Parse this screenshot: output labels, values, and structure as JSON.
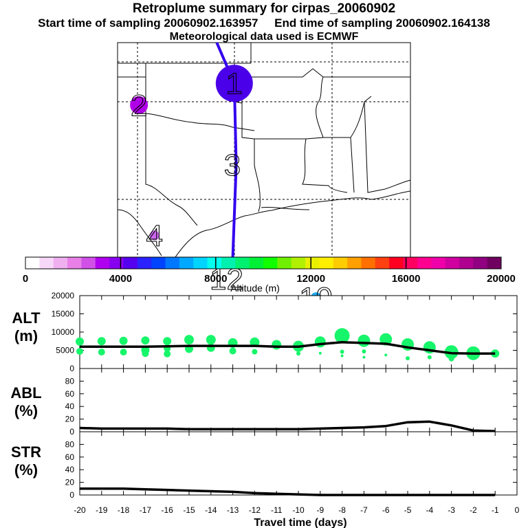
{
  "header": {
    "title": "Retroplume summary for cirpas_20060902",
    "start_sampling": "Start time of sampling 20060902.163957",
    "end_sampling": "End time of sampling 20060902.164138",
    "met_data": "Meteorological data used is ECMWF"
  },
  "map": {
    "plume_color": "#3300ee",
    "markers": [
      {
        "label": "1",
        "color": "#4a00e8",
        "lon": -93.9,
        "lat": 36.0
      },
      {
        "label": "2",
        "color": "#b000e8",
        "lon": -98.8,
        "lat": 35.2
      },
      {
        "label": "3",
        "color": "",
        "lon": -94.0,
        "lat": 33.0
      },
      {
        "label": "4",
        "color": "#cc66ee",
        "lon": -98.0,
        "lat": 30.4
      },
      {
        "label": "12",
        "color": "",
        "lon": -94.3,
        "lat": 28.8
      },
      {
        "label": "19",
        "color": "#1aaaee",
        "lon": -89.7,
        "lat": 28.1
      }
    ],
    "path": [
      [
        -94.8,
        37.5
      ],
      [
        -93.9,
        36.0
      ],
      [
        -93.8,
        33.0
      ],
      [
        -94.0,
        29.2
      ]
    ]
  },
  "colorbar": {
    "ticks": [
      "0",
      "4000",
      "8000",
      "12000",
      "16000",
      "20000"
    ],
    "label": "Altitude (m)",
    "colors": [
      "#ffffff",
      "#f8d8f8",
      "#f0b0f0",
      "#e880e8",
      "#d050e8",
      "#b000f0",
      "#8800f0",
      "#5500ee",
      "#2a22ff",
      "#0044ff",
      "#0077ff",
      "#00a8ff",
      "#00d4ff",
      "#00ffee",
      "#00f0b0",
      "#00f070",
      "#00f038",
      "#10ff00",
      "#70f000",
      "#b0f000",
      "#e8f000",
      "#ffee00",
      "#ffcc00",
      "#ffa000",
      "#ff7000",
      "#ff4010",
      "#ff0020",
      "#ff0060",
      "#ff0090",
      "#f000a8",
      "#d000a0",
      "#b00090",
      "#900080",
      "#700060"
    ]
  },
  "chart_data": [
    {
      "type": "line",
      "panel": "ALT",
      "ylabel": "ALT (m)",
      "ylim": [
        0,
        20000
      ],
      "yticks": [
        "0",
        "5000",
        "10000",
        "15000",
        "20000"
      ],
      "x": [
        -20,
        -19,
        -18,
        -17,
        -16,
        -15,
        -14,
        -13,
        -12,
        -11,
        -10,
        -9,
        -8,
        -7,
        -6,
        -5,
        -4,
        -3,
        -2,
        -1
      ],
      "mean": [
        6000,
        6000,
        6000,
        6000,
        6100,
        6200,
        6200,
        6200,
        6200,
        6000,
        6000,
        6700,
        7200,
        7000,
        6800,
        5800,
        5000,
        4200,
        4100,
        4100
      ],
      "points": [
        {
          "x": -20,
          "y": 7400,
          "r": 6
        },
        {
          "x": -20,
          "y": 4700,
          "r": 5
        },
        {
          "x": -19,
          "y": 7500,
          "r": 6
        },
        {
          "x": -19,
          "y": 4500,
          "r": 5
        },
        {
          "x": -18,
          "y": 7600,
          "r": 6
        },
        {
          "x": -18,
          "y": 4500,
          "r": 5
        },
        {
          "x": -17,
          "y": 7700,
          "r": 6
        },
        {
          "x": -17,
          "y": 5100,
          "r": 6
        },
        {
          "x": -17,
          "y": 4100,
          "r": 5
        },
        {
          "x": -16,
          "y": 7500,
          "r": 6
        },
        {
          "x": -16,
          "y": 5500,
          "r": 5
        },
        {
          "x": -16,
          "y": 4000,
          "r": 5
        },
        {
          "x": -15,
          "y": 7900,
          "r": 7
        },
        {
          "x": -15,
          "y": 5400,
          "r": 6
        },
        {
          "x": -14,
          "y": 7900,
          "r": 7
        },
        {
          "x": -14,
          "y": 5700,
          "r": 6
        },
        {
          "x": -13,
          "y": 7000,
          "r": 7
        },
        {
          "x": -13,
          "y": 4800,
          "r": 5
        },
        {
          "x": -12,
          "y": 7200,
          "r": 7
        },
        {
          "x": -12,
          "y": 4600,
          "r": 4
        },
        {
          "x": -11,
          "y": 6500,
          "r": 7
        },
        {
          "x": -10,
          "y": 6100,
          "r": 8
        },
        {
          "x": -10,
          "y": 4100,
          "r": 3
        },
        {
          "x": -9,
          "y": 7300,
          "r": 8
        },
        {
          "x": -9,
          "y": 4200,
          "r": 2
        },
        {
          "x": -8,
          "y": 9000,
          "r": 11
        },
        {
          "x": -8,
          "y": 4600,
          "r": 3
        },
        {
          "x": -8,
          "y": 3500,
          "r": 2
        },
        {
          "x": -7,
          "y": 7600,
          "r": 9
        },
        {
          "x": -7,
          "y": 4700,
          "r": 3
        },
        {
          "x": -7,
          "y": 3100,
          "r": 2
        },
        {
          "x": -6,
          "y": 8000,
          "r": 9
        },
        {
          "x": -6,
          "y": 3700,
          "r": 2
        },
        {
          "x": -5,
          "y": 6600,
          "r": 9
        },
        {
          "x": -5,
          "y": 2800,
          "r": 3
        },
        {
          "x": -4,
          "y": 5800,
          "r": 9
        },
        {
          "x": -4,
          "y": 3100,
          "r": 3
        },
        {
          "x": -3,
          "y": 4500,
          "r": 10
        },
        {
          "x": -3,
          "y": 2700,
          "r": 4
        },
        {
          "x": -2,
          "y": 4200,
          "r": 10
        },
        {
          "x": -2,
          "y": 3100,
          "r": 4
        },
        {
          "x": -1,
          "y": 4100,
          "r": 6
        }
      ]
    },
    {
      "type": "line",
      "panel": "ABL",
      "ylabel": "ABL (%)",
      "ylim": [
        0,
        100
      ],
      "yticks": [
        "0",
        "20",
        "40",
        "60",
        "80"
      ],
      "x": [
        -20,
        -19,
        -18,
        -17,
        -16,
        -15,
        -14,
        -13,
        -12,
        -11,
        -10,
        -9,
        -8,
        -7,
        -6,
        -5,
        -4,
        -3,
        -2,
        -1
      ],
      "values": [
        6,
        5,
        5,
        5,
        5,
        4,
        4,
        4,
        4,
        4,
        4,
        5,
        6,
        7,
        9,
        15,
        16,
        10,
        2,
        1
      ]
    },
    {
      "type": "line",
      "panel": "STR",
      "ylabel": "STR (%)",
      "ylim": [
        0,
        100
      ],
      "yticks": [
        "0",
        "20",
        "40",
        "60",
        "80"
      ],
      "x": [
        -20,
        -19,
        -18,
        -17,
        -16,
        -15,
        -14,
        -13,
        -12,
        -11,
        -10,
        -9,
        -8,
        -7,
        -6,
        -5,
        -4,
        -3,
        -2,
        -1
      ],
      "values": [
        10,
        10,
        10,
        9,
        8,
        7,
        6,
        5,
        3,
        2,
        1,
        0,
        0,
        0,
        0,
        0,
        0,
        0,
        0,
        0
      ],
      "xlabel": "Travel time (days)",
      "xticks": [
        "-20",
        "-19",
        "-18",
        "-17",
        "-16",
        "-15",
        "-14",
        "-13",
        "-12",
        "-11",
        "-10",
        "-9",
        "-8",
        "-7",
        "-6",
        "-5",
        "-4",
        "-3",
        "-2",
        "-1",
        "0"
      ]
    }
  ]
}
